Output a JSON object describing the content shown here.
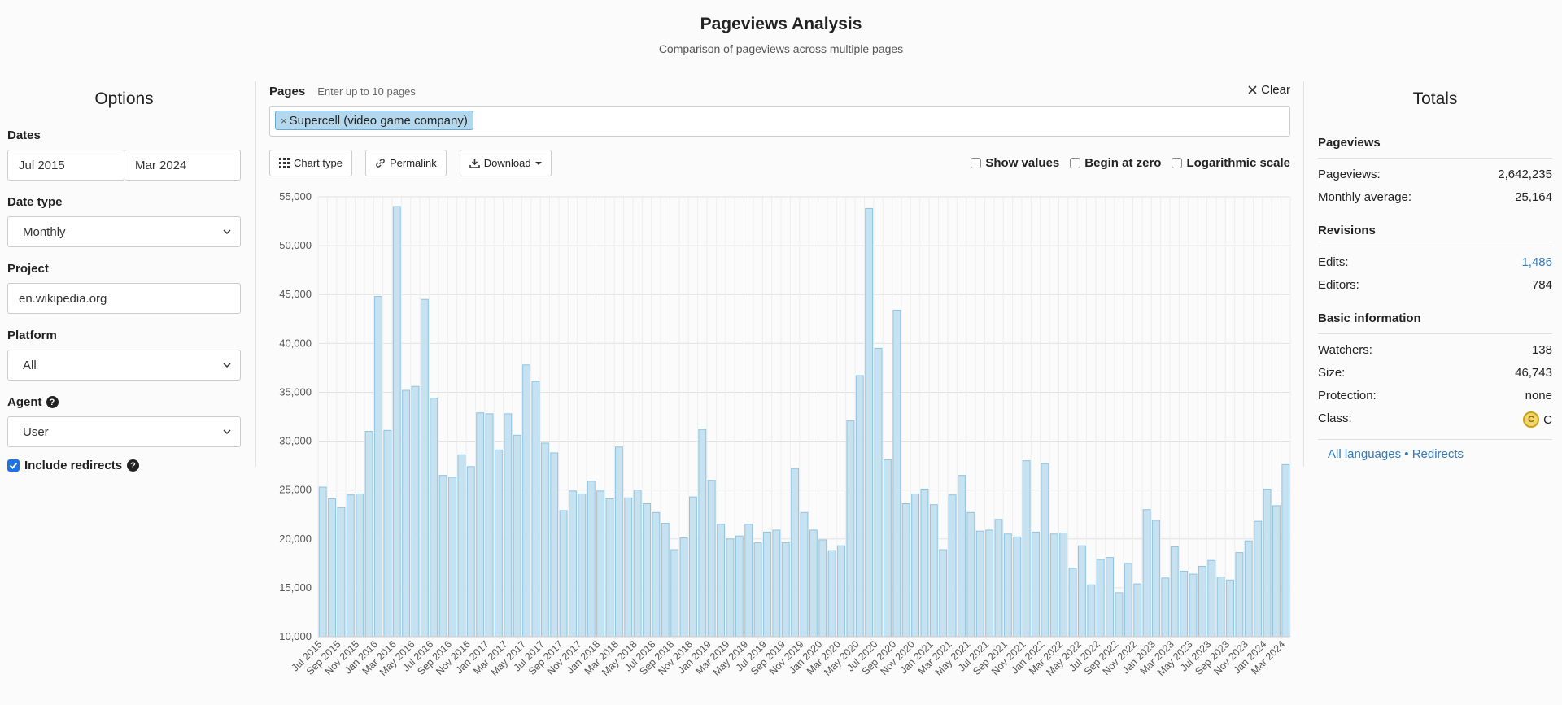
{
  "header": {
    "title": "Pageviews Analysis",
    "subtitle": "Comparison of pageviews across multiple pages"
  },
  "options": {
    "title": "Options",
    "dates": {
      "label": "Dates",
      "start": "Jul 2015",
      "end": "Mar 2024"
    },
    "date_type": {
      "label": "Date type",
      "value": "Monthly"
    },
    "project": {
      "label": "Project",
      "value": "en.wikipedia.org"
    },
    "platform": {
      "label": "Platform",
      "value": "All"
    },
    "agent": {
      "label": "Agent",
      "value": "User"
    },
    "include_redirects": {
      "label": "Include redirects",
      "checked": true
    }
  },
  "pages": {
    "label": "Pages",
    "hint": "Enter up to 10 pages",
    "clear_label": "Clear",
    "tags": [
      "Supercell (video game company)"
    ]
  },
  "toolbar": {
    "chart_type": "Chart type",
    "permalink": "Permalink",
    "download": "Download",
    "show_values": "Show values",
    "begin_at_zero": "Begin at zero",
    "log_scale": "Logarithmic scale"
  },
  "totals": {
    "title": "Totals",
    "pageviews": {
      "heading": "Pageviews",
      "pageviews_label": "Pageviews:",
      "pageviews_value": "2,642,235",
      "avg_label": "Monthly average:",
      "avg_value": "25,164"
    },
    "revisions": {
      "heading": "Revisions",
      "edits_label": "Edits:",
      "edits_value": "1,486",
      "editors_label": "Editors:",
      "editors_value": "784"
    },
    "basic": {
      "heading": "Basic information",
      "watchers_label": "Watchers:",
      "watchers_value": "138",
      "size_label": "Size:",
      "size_value": "46,743",
      "protection_label": "Protection:",
      "protection_value": "none",
      "class_label": "Class:",
      "class_value": "C"
    },
    "links": {
      "all_languages": "All languages",
      "separator": "•",
      "redirects": "Redirects"
    }
  },
  "chart_data": {
    "type": "bar",
    "ylim": [
      10000,
      55000
    ],
    "yticks": [
      "55,000",
      "50,000",
      "45,000",
      "40,000",
      "35,000",
      "30,000",
      "25,000",
      "20,000",
      "15,000",
      "10,000"
    ],
    "bar_color": "#c6e2f1",
    "bar_border": "#8fc4e0",
    "categories": [
      "Jul 2015",
      "Aug 2015",
      "Sep 2015",
      "Oct 2015",
      "Nov 2015",
      "Dec 2015",
      "Jan 2016",
      "Feb 2016",
      "Mar 2016",
      "Apr 2016",
      "May 2016",
      "Jun 2016",
      "Jul 2016",
      "Aug 2016",
      "Sep 2016",
      "Oct 2016",
      "Nov 2016",
      "Dec 2016",
      "Jan 2017",
      "Feb 2017",
      "Mar 2017",
      "Apr 2017",
      "May 2017",
      "Jun 2017",
      "Jul 2017",
      "Aug 2017",
      "Sep 2017",
      "Oct 2017",
      "Nov 2017",
      "Dec 2017",
      "Jan 2018",
      "Feb 2018",
      "Mar 2018",
      "Apr 2018",
      "May 2018",
      "Jun 2018",
      "Jul 2018",
      "Aug 2018",
      "Sep 2018",
      "Oct 2018",
      "Nov 2018",
      "Dec 2018",
      "Jan 2019",
      "Feb 2019",
      "Mar 2019",
      "Apr 2019",
      "May 2019",
      "Jun 2019",
      "Jul 2019",
      "Aug 2019",
      "Sep 2019",
      "Oct 2019",
      "Nov 2019",
      "Dec 2019",
      "Jan 2020",
      "Feb 2020",
      "Mar 2020",
      "Apr 2020",
      "May 2020",
      "Jun 2020",
      "Jul 2020",
      "Aug 2020",
      "Sep 2020",
      "Oct 2020",
      "Nov 2020",
      "Dec 2020",
      "Jan 2021",
      "Feb 2021",
      "Mar 2021",
      "Apr 2021",
      "May 2021",
      "Jun 2021",
      "Jul 2021",
      "Aug 2021",
      "Sep 2021",
      "Oct 2021",
      "Nov 2021",
      "Dec 2021",
      "Jan 2022",
      "Feb 2022",
      "Mar 2022",
      "Apr 2022",
      "May 2022",
      "Jun 2022",
      "Jul 2022",
      "Aug 2022",
      "Sep 2022",
      "Oct 2022",
      "Nov 2022",
      "Dec 2022",
      "Jan 2023",
      "Feb 2023",
      "Mar 2023",
      "Apr 2023",
      "May 2023",
      "Jun 2023",
      "Jul 2023",
      "Aug 2023",
      "Sep 2023",
      "Oct 2023",
      "Nov 2023",
      "Dec 2023",
      "Jan 2024",
      "Feb 2024",
      "Mar 2024"
    ],
    "values": [
      25300,
      24100,
      23200,
      24500,
      24600,
      31000,
      44800,
      31100,
      54000,
      35200,
      35600,
      44500,
      34400,
      26500,
      26300,
      28600,
      27400,
      32900,
      32800,
      29100,
      32800,
      30600,
      37800,
      36100,
      29800,
      28800,
      22900,
      24900,
      24600,
      25900,
      24900,
      24100,
      29400,
      24200,
      25000,
      23600,
      22700,
      21600,
      18900,
      20100,
      24300,
      31200,
      26000,
      21500,
      20000,
      20300,
      21500,
      19600,
      20700,
      20900,
      19600,
      27200,
      22700,
      20900,
      19900,
      18800,
      19300,
      32100,
      36700,
      53800,
      39500,
      28100,
      43400,
      23600,
      24600,
      25100,
      23500,
      18900,
      24500,
      26500,
      22700,
      20800,
      20900,
      22000,
      20500,
      20200,
      28000,
      20700,
      27700,
      20500,
      20600,
      17000,
      19300,
      15300,
      17900,
      18100,
      14500,
      17500,
      15400,
      23000,
      21900,
      16000,
      19200,
      16700,
      16400,
      17200,
      17800,
      16100,
      15800,
      18600,
      19800,
      21800,
      25100,
      23400,
      27600
    ],
    "ticks_shown": [
      "Jul 2015",
      "Sep 2015",
      "Nov 2015",
      "Jan 2016",
      "Mar 2016",
      "May 2016",
      "Jul 2016",
      "Sep 2016",
      "Nov 2016",
      "Jan 2017",
      "Mar 2017",
      "May 2017",
      "Jul 2017",
      "Sep 2017",
      "Nov 2017",
      "Jan 2018",
      "Mar 2018",
      "May 2018",
      "Jul 2018",
      "Sep 2018",
      "Nov 2018",
      "Jan 2019",
      "Mar 2019",
      "May 2019",
      "Jul 2019",
      "Sep 2019",
      "Nov 2019",
      "Jan 2020",
      "Mar 2020",
      "May 2020",
      "Jul 2020",
      "Sep 2020",
      "Nov 2020",
      "Jan 2021",
      "Mar 2021",
      "May 2021",
      "Jul 2021",
      "Sep 2021",
      "Nov 2021",
      "Jan 2022",
      "Mar 2022",
      "May 2022",
      "Jul 2022",
      "Sep 2022",
      "Nov 2022",
      "Jan 2023",
      "Mar 2023",
      "May 2023",
      "Jul 2023",
      "Sep 2023",
      "Nov 2023",
      "Jan 2024",
      "Mar 2024"
    ],
    "grid": true
  }
}
